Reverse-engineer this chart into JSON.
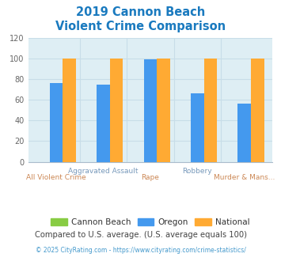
{
  "title_line1": "2019 Cannon Beach",
  "title_line2": "Violent Crime Comparison",
  "title_color": "#1a7abf",
  "categories": [
    "All Violent Crime",
    "Aggravated Assault",
    "Rape",
    "Robbery",
    "Murder & Mans..."
  ],
  "cannon_beach": [
    0,
    0,
    0,
    0,
    0
  ],
  "oregon": [
    76,
    75,
    99,
    66,
    56
  ],
  "national": [
    100,
    100,
    100,
    100,
    100
  ],
  "cannon_beach_color": "#88cc44",
  "oregon_color": "#4499ee",
  "national_color": "#ffaa33",
  "ylim": [
    0,
    120
  ],
  "yticks": [
    0,
    20,
    40,
    60,
    80,
    100,
    120
  ],
  "plot_bg_color": "#deeef4",
  "fig_bg_color": "#ffffff",
  "grid_color": "#c8dde8",
  "xlabel_top_color": "#7799bb",
  "xlabel_bot_color": "#cc8855",
  "legend_labels": [
    "Cannon Beach",
    "Oregon",
    "National"
  ],
  "footnote1": "Compared to U.S. average. (U.S. average equals 100)",
  "footnote2": "© 2025 CityRating.com - https://www.cityrating.com/crime-statistics/",
  "footnote1_color": "#444444",
  "footnote2_color": "#4499cc",
  "bar_width": 0.28
}
